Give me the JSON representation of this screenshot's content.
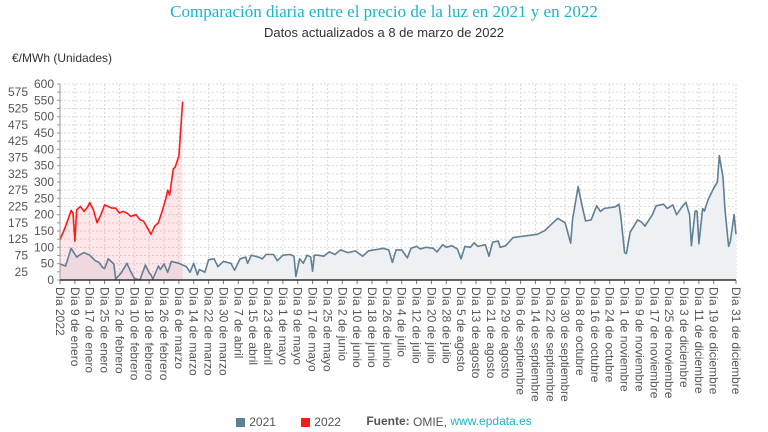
{
  "chart_data": {
    "type": "area",
    "title": "Comparación diaria entre el precio de la luz en 2021 y en 2022",
    "subtitle": "Datos actualizados a 8 de marzo de 2022",
    "ylabel": "€/MWh (Unidades)",
    "xlabel": "",
    "ylim": [
      0,
      600
    ],
    "ytick_step": 25,
    "xlim": [
      1,
      365
    ],
    "grid": true,
    "legend_placement": "bottom",
    "x_ticks": [
      {
        "day": 1,
        "label": "Día 2022"
      },
      {
        "day": 9,
        "label": "Día 9 de enero"
      },
      {
        "day": 17,
        "label": "Día 17 de enero"
      },
      {
        "day": 25,
        "label": "Día 25 de enero"
      },
      {
        "day": 33,
        "label": "Día 2 de febrero"
      },
      {
        "day": 41,
        "label": "Día 10 de febrero"
      },
      {
        "day": 49,
        "label": "Día 18 de febrero"
      },
      {
        "day": 57,
        "label": "Día 26 de febrero"
      },
      {
        "day": 65,
        "label": "Día 6 de marzo"
      },
      {
        "day": 73,
        "label": "Día 14 de marzo"
      },
      {
        "day": 81,
        "label": "Día 22 de marzo"
      },
      {
        "day": 89,
        "label": "Día 30 de marzo"
      },
      {
        "day": 97,
        "label": "Día 7 de abril"
      },
      {
        "day": 105,
        "label": "Día 15 de abril"
      },
      {
        "day": 113,
        "label": "Día 23 de abril"
      },
      {
        "day": 121,
        "label": "Día 1 de mayo"
      },
      {
        "day": 129,
        "label": "Día 9 de mayo"
      },
      {
        "day": 137,
        "label": "Día 17 de mayo"
      },
      {
        "day": 145,
        "label": "Día 25 de mayo"
      },
      {
        "day": 153,
        "label": "Día 2 de junio"
      },
      {
        "day": 161,
        "label": "Día 10 de junio"
      },
      {
        "day": 169,
        "label": "Día 18 de junio"
      },
      {
        "day": 177,
        "label": "Día 26 de junio"
      },
      {
        "day": 185,
        "label": "Día 4 de julio"
      },
      {
        "day": 193,
        "label": "Día 12 de julio"
      },
      {
        "day": 201,
        "label": "Día 20 de julio"
      },
      {
        "day": 209,
        "label": "Día 28 de julio"
      },
      {
        "day": 217,
        "label": "Día 5 de agosto"
      },
      {
        "day": 225,
        "label": "Día 13 de agosto"
      },
      {
        "day": 233,
        "label": "Día 21 de agosto"
      },
      {
        "day": 241,
        "label": "Día 29 de agosto"
      },
      {
        "day": 249,
        "label": "Día 6 de septiembre"
      },
      {
        "day": 257,
        "label": "Día 14 de septiembre"
      },
      {
        "day": 265,
        "label": "Día 22 de septiembre"
      },
      {
        "day": 273,
        "label": "Día 30 de septiembre"
      },
      {
        "day": 281,
        "label": "Día 8 de octubre"
      },
      {
        "day": 289,
        "label": "Día 16 de octubre"
      },
      {
        "day": 297,
        "label": "Día 24 de octubre"
      },
      {
        "day": 305,
        "label": "Día 1 de noviembre"
      },
      {
        "day": 313,
        "label": "Día 9 de noviembre"
      },
      {
        "day": 321,
        "label": "Día 17 de noviembre"
      },
      {
        "day": 329,
        "label": "Día 25 de noviembre"
      },
      {
        "day": 337,
        "label": "Día 3 de diciembre"
      },
      {
        "day": 345,
        "label": "Día 11 de diciembre"
      },
      {
        "day": 353,
        "label": "Día 19 de diciembre"
      },
      {
        "day": 365,
        "label": "Día 31 de diciembre"
      }
    ],
    "series": [
      {
        "name": "2021",
        "color": "#5f7f95",
        "fill": "#eef0f3",
        "points": [
          [
            1,
            49
          ],
          [
            4,
            43
          ],
          [
            7,
            97
          ],
          [
            10,
            70
          ],
          [
            12,
            78
          ],
          [
            14,
            84
          ],
          [
            17,
            76
          ],
          [
            20,
            59
          ],
          [
            22,
            54
          ],
          [
            24,
            38
          ],
          [
            25,
            35
          ],
          [
            27,
            65
          ],
          [
            30,
            49
          ],
          [
            31,
            3
          ],
          [
            34,
            22
          ],
          [
            37,
            51
          ],
          [
            39,
            27
          ],
          [
            41,
            5
          ],
          [
            44,
            0
          ],
          [
            47,
            46
          ],
          [
            49,
            22
          ],
          [
            50,
            16
          ],
          [
            51,
            3
          ],
          [
            54,
            43
          ],
          [
            55,
            32
          ],
          [
            57,
            49
          ],
          [
            59,
            24
          ],
          [
            61,
            57
          ],
          [
            65,
            51
          ],
          [
            69,
            41
          ],
          [
            71,
            24
          ],
          [
            73,
            51
          ],
          [
            75,
            16
          ],
          [
            76,
            32
          ],
          [
            79,
            24
          ],
          [
            81,
            62
          ],
          [
            84,
            65
          ],
          [
            86,
            41
          ],
          [
            89,
            57
          ],
          [
            93,
            51
          ],
          [
            95,
            30
          ],
          [
            98,
            65
          ],
          [
            101,
            70
          ],
          [
            102,
            51
          ],
          [
            104,
            76
          ],
          [
            108,
            70
          ],
          [
            110,
            65
          ],
          [
            112,
            78
          ],
          [
            116,
            78
          ],
          [
            118,
            59
          ],
          [
            121,
            76
          ],
          [
            125,
            78
          ],
          [
            127,
            73
          ],
          [
            128,
            11
          ],
          [
            130,
            65
          ],
          [
            132,
            51
          ],
          [
            134,
            76
          ],
          [
            136,
            70
          ],
          [
            137,
            27
          ],
          [
            138,
            76
          ],
          [
            140,
            76
          ],
          [
            143,
            73
          ],
          [
            146,
            86
          ],
          [
            149,
            78
          ],
          [
            152,
            92
          ],
          [
            156,
            84
          ],
          [
            160,
            89
          ],
          [
            164,
            73
          ],
          [
            167,
            89
          ],
          [
            173,
            95
          ],
          [
            175,
            97
          ],
          [
            178,
            92
          ],
          [
            180,
            54
          ],
          [
            182,
            92
          ],
          [
            185,
            92
          ],
          [
            188,
            68
          ],
          [
            190,
            97
          ],
          [
            193,
            103
          ],
          [
            195,
            95
          ],
          [
            198,
            100
          ],
          [
            202,
            97
          ],
          [
            204,
            86
          ],
          [
            207,
            108
          ],
          [
            209,
            100
          ],
          [
            212,
            105
          ],
          [
            215,
            95
          ],
          [
            217,
            65
          ],
          [
            219,
            103
          ],
          [
            222,
            100
          ],
          [
            224,
            114
          ],
          [
            226,
            103
          ],
          [
            230,
            108
          ],
          [
            232,
            73
          ],
          [
            234,
            116
          ],
          [
            237,
            119
          ],
          [
            238,
            100
          ],
          [
            241,
            105
          ],
          [
            245,
            130
          ],
          [
            258,
            140
          ],
          [
            262,
            151
          ],
          [
            269,
            189
          ],
          [
            273,
            175
          ],
          [
            276,
            113
          ],
          [
            277,
            186
          ],
          [
            280,
            286
          ],
          [
            282,
            230
          ],
          [
            284,
            181
          ],
          [
            287,
            184
          ],
          [
            290,
            227
          ],
          [
            292,
            210
          ],
          [
            294,
            219
          ],
          [
            300,
            224
          ],
          [
            302,
            232
          ],
          [
            303,
            192
          ],
          [
            305,
            84
          ],
          [
            306,
            81
          ],
          [
            308,
            146
          ],
          [
            312,
            184
          ],
          [
            314,
            178
          ],
          [
            316,
            165
          ],
          [
            320,
            200
          ],
          [
            322,
            227
          ],
          [
            326,
            232
          ],
          [
            328,
            219
          ],
          [
            331,
            230
          ],
          [
            333,
            200
          ],
          [
            336,
            224
          ],
          [
            338,
            238
          ],
          [
            340,
            200
          ],
          [
            341,
            105
          ],
          [
            343,
            211
          ],
          [
            344,
            211
          ],
          [
            345,
            111
          ],
          [
            347,
            219
          ],
          [
            348,
            211
          ],
          [
            350,
            246
          ],
          [
            353,
            281
          ],
          [
            355,
            300
          ],
          [
            356,
            381
          ],
          [
            358,
            314
          ],
          [
            359,
            219
          ],
          [
            361,
            103
          ],
          [
            362,
            119
          ],
          [
            364,
            200
          ],
          [
            365,
            141
          ]
        ]
      },
      {
        "name": "2022",
        "color": "#ff1a1a",
        "fill": "rgba(255,80,100,0.14)",
        "points": [
          [
            1,
            124
          ],
          [
            3,
            150
          ],
          [
            5,
            180
          ],
          [
            7,
            213
          ],
          [
            8,
            205
          ],
          [
            9,
            119
          ],
          [
            10,
            215
          ],
          [
            12,
            225
          ],
          [
            14,
            210
          ],
          [
            16,
            225
          ],
          [
            17,
            237
          ],
          [
            19,
            215
          ],
          [
            21,
            175
          ],
          [
            23,
            200
          ],
          [
            25,
            230
          ],
          [
            27,
            225
          ],
          [
            29,
            220
          ],
          [
            31,
            220
          ],
          [
            33,
            205
          ],
          [
            35,
            210
          ],
          [
            37,
            205
          ],
          [
            39,
            195
          ],
          [
            42,
            200
          ],
          [
            44,
            185
          ],
          [
            46,
            180
          ],
          [
            48,
            160
          ],
          [
            50,
            140
          ],
          [
            52,
            165
          ],
          [
            54,
            175
          ],
          [
            56,
            210
          ],
          [
            58,
            250
          ],
          [
            59,
            275
          ],
          [
            60,
            260
          ],
          [
            62,
            340
          ],
          [
            63,
            345
          ],
          [
            65,
            380
          ],
          [
            67,
            545
          ]
        ]
      }
    ]
  },
  "legend": {
    "items": [
      {
        "label": "2021",
        "color": "#5f7f95"
      },
      {
        "label": "2022",
        "color": "#ff1a1a"
      }
    ],
    "source_label": "Fuente:",
    "source_name": "OMIE,",
    "source_link": "www.epdata.es"
  }
}
